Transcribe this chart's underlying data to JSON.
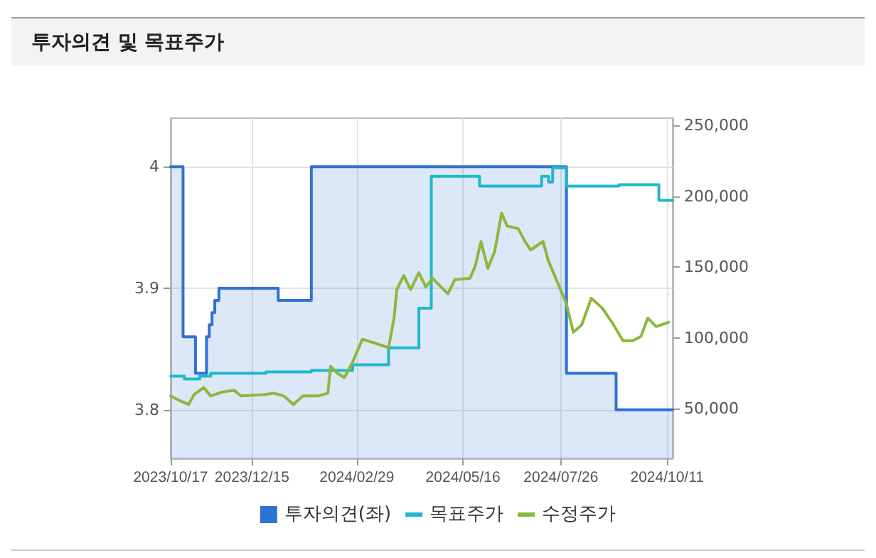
{
  "chart_data": {
    "type": "line",
    "title": "투자의견 및 목표주가",
    "series": [
      {
        "name": "투자의견(좌)",
        "type": "area",
        "color": "#2f72d6",
        "axis": "y",
        "x": [
          "2023-10-17",
          "2023-10-26",
          "2023-10-26",
          "2023-11-04",
          "2023-11-04",
          "2023-11-12",
          "2023-11-12",
          "2023-11-14",
          "2023-11-14",
          "2023-11-16",
          "2023-11-16",
          "2023-11-18",
          "2023-11-18",
          "2023-11-21",
          "2023-11-21",
          "2024-01-03",
          "2024-01-03",
          "2024-01-27",
          "2024-01-27",
          "2024-07-30",
          "2024-07-30",
          "2024-09-04",
          "2024-09-04",
          "2024-10-15"
        ],
        "values": [
          4,
          4,
          3.86,
          3.86,
          3.83,
          3.83,
          3.86,
          3.86,
          3.87,
          3.87,
          3.88,
          3.88,
          3.89,
          3.89,
          3.9,
          3.9,
          3.89,
          3.89,
          4,
          4,
          3.83,
          3.83,
          3.8,
          3.8
        ]
      },
      {
        "name": "목표주가",
        "type": "step",
        "color": "#1fb8c9",
        "axis": "y2",
        "x": [
          "2023-10-17",
          "2023-10-27",
          "2023-11-07",
          "2023-11-15",
          "2023-12-25",
          "2024-01-27",
          "2024-02-26",
          "2024-03-23",
          "2024-04-14",
          "2024-04-23",
          "2024-05-28",
          "2024-07-12",
          "2024-07-17",
          "2024-07-20",
          "2024-07-30",
          "2024-09-06",
          "2024-10-05",
          "2024-10-15"
        ],
        "values": [
          73000,
          71000,
          73000,
          75000,
          76000,
          77000,
          81000,
          93000,
          121000,
          214000,
          207000,
          214000,
          210000,
          220000,
          207000,
          208000,
          197000,
          197000
        ]
      },
      {
        "name": "수정주가",
        "color": "#8ab83c",
        "axis": "y2",
        "x": [
          "2023-10-17",
          "2023-10-23",
          "2023-10-30",
          "2023-11-03",
          "2023-11-10",
          "2023-11-15",
          "2023-11-24",
          "2023-12-02",
          "2023-12-07",
          "2023-12-24",
          "2023-12-31",
          "2024-01-07",
          "2024-01-14",
          "2024-01-21",
          "2024-02-01",
          "2024-02-08",
          "2024-02-10",
          "2024-02-15",
          "2024-02-20",
          "2024-02-26",
          "2024-03-04",
          "2024-03-14",
          "2024-03-23",
          "2024-03-27",
          "2024-03-29",
          "2024-04-03",
          "2024-04-08",
          "2024-04-14",
          "2024-04-19",
          "2024-04-24",
          "2024-05-05",
          "2024-05-10",
          "2024-05-21",
          "2024-05-25",
          "2024-05-29",
          "2024-06-03",
          "2024-06-08",
          "2024-06-13",
          "2024-06-17",
          "2024-06-25",
          "2024-06-30",
          "2024-07-04",
          "2024-07-13",
          "2024-07-17",
          "2024-07-24",
          "2024-07-30",
          "2024-08-04",
          "2024-08-10",
          "2024-08-17",
          "2024-08-25",
          "2024-09-01",
          "2024-09-09",
          "2024-09-16",
          "2024-09-22",
          "2024-09-27",
          "2024-10-03",
          "2024-10-12"
        ],
        "values": [
          59000,
          56000,
          53000,
          60000,
          65000,
          59000,
          62000,
          63000,
          59000,
          60000,
          61000,
          59000,
          53000,
          59000,
          59000,
          61000,
          80000,
          75000,
          72000,
          83000,
          99000,
          96000,
          93000,
          114000,
          134000,
          144000,
          134000,
          146000,
          136000,
          142000,
          131000,
          141000,
          142000,
          151000,
          168000,
          149000,
          161000,
          188000,
          179000,
          177000,
          168000,
          162000,
          168000,
          154000,
          138000,
          124000,
          104000,
          109000,
          128000,
          121000,
          111000,
          98000,
          98000,
          101000,
          114000,
          108000,
          111000
        ]
      }
    ],
    "xlim": [
      "2023-10-17",
      "2024-10-15"
    ],
    "xticks": [
      {
        "value": "2023-10-17",
        "label": "2023/10/17"
      },
      {
        "value": "2023-12-15",
        "label": "2023/12/15"
      },
      {
        "value": "2024-02-29",
        "label": "2024/02/29"
      },
      {
        "value": "2024-05-16",
        "label": "2024/05/16"
      },
      {
        "value": "2024-07-26",
        "label": "2024/07/26"
      },
      {
        "value": "2024-10-11",
        "label": "2024/10/11"
      }
    ],
    "ylim": [
      3.76,
      4.04
    ],
    "yticks": [
      3.8,
      3.9,
      4
    ],
    "y2lim": [
      15000,
      255000
    ],
    "y2ticks": [
      {
        "value": 50000,
        "label": "50,000"
      },
      {
        "value": 100000,
        "label": "100,000"
      },
      {
        "value": 150000,
        "label": "150,000"
      },
      {
        "value": 200000,
        "label": "200,000"
      },
      {
        "value": 250000,
        "label": "250,000"
      }
    ],
    "grid": true,
    "legend": "bottom",
    "marker": "none",
    "line_style": "solid"
  }
}
